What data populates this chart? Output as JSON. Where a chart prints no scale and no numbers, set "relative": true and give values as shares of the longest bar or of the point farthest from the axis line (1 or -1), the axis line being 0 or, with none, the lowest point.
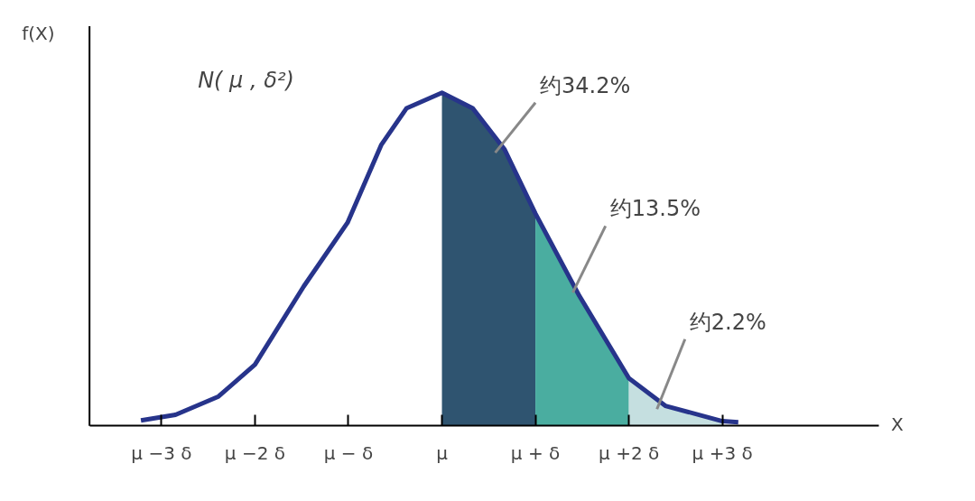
{
  "chart_data": {
    "type": "line",
    "relative": true,
    "xlabel": "X",
    "ylabel": "f(X)",
    "xlim": [
      -3.77,
      4.67
    ],
    "xticks": [
      {
        "value": -3,
        "label": "μ −3 δ"
      },
      {
        "value": -2,
        "label": "μ −2 δ"
      },
      {
        "value": -1,
        "label": "μ − δ"
      },
      {
        "value": 0,
        "label": "μ"
      },
      {
        "value": 1,
        "label": "μ + δ"
      },
      {
        "value": 2,
        "label": "μ +2 δ"
      },
      {
        "value": 3,
        "label": "μ +3 δ"
      }
    ],
    "series": [
      {
        "type": "area",
        "color": "#2f5470",
        "x": [
          0,
          0.33,
          0.67,
          1.0
        ],
        "values": [
          1,
          0.953,
          0.83,
          0.637
        ]
      },
      {
        "type": "area",
        "color": "#4aada0",
        "x": [
          1.0,
          1.47,
          2.0
        ],
        "values": [
          0.637,
          0.39,
          0.143
        ]
      },
      {
        "type": "area",
        "color": "#c5dfe0",
        "x": [
          2.0,
          2.39,
          3.0
        ],
        "values": [
          0.143,
          0.06,
          0.014
        ]
      },
      {
        "color": "#27348b",
        "x": [
          -3.22,
          -2.85,
          -2.39,
          -2.0,
          -1.48,
          -1.01,
          -0.65,
          -0.38,
          0,
          0.33,
          0.67,
          1.0,
          1.47,
          2.0,
          2.39,
          3.0,
          3.17
        ],
        "values": [
          0.016,
          0.033,
          0.088,
          0.184,
          0.418,
          0.61,
          0.843,
          0.953,
          1,
          0.953,
          0.83,
          0.637,
          0.39,
          0.143,
          0.06,
          0.014,
          0.011
        ]
      }
    ],
    "annotations": [
      "N( μ , δ²)",
      "约34.2%",
      "约13.5%",
      "约2.2%"
    ],
    "grid": false
  }
}
